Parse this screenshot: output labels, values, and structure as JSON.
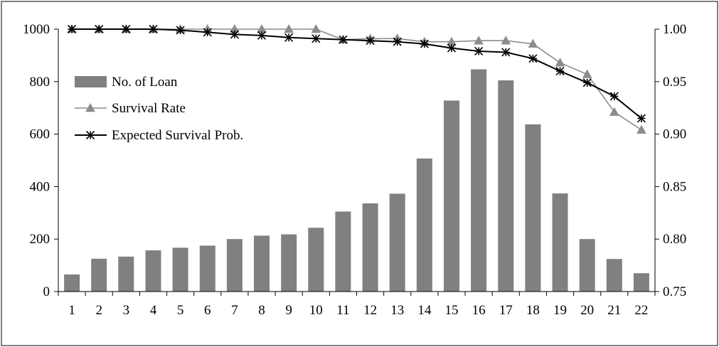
{
  "chart_data": {
    "type": "bar",
    "title": "",
    "xlabel": "",
    "categories": [
      "1",
      "2",
      "3",
      "4",
      "5",
      "6",
      "7",
      "8",
      "9",
      "10",
      "11",
      "12",
      "13",
      "14",
      "15",
      "16",
      "17",
      "18",
      "19",
      "20",
      "21",
      "22"
    ],
    "bars": {
      "name": "No. of Loan",
      "axis": "left",
      "color": "#808080",
      "values": [
        65,
        125,
        133,
        157,
        167,
        175,
        200,
        213,
        218,
        243,
        305,
        336,
        373,
        507,
        728,
        847,
        805,
        637,
        374,
        200,
        124,
        70
      ]
    },
    "lines": [
      {
        "name": "Survival Rate",
        "axis": "right",
        "color": "#8c8c8c",
        "marker": "triangle",
        "values": [
          1.0,
          1.0,
          1.0,
          1.0,
          1.0,
          1.0,
          1.0,
          1.0,
          1.0,
          1.0,
          0.99,
          0.991,
          0.991,
          0.988,
          0.988,
          0.989,
          0.989,
          0.986,
          0.968,
          0.957,
          0.921,
          0.904
        ]
      },
      {
        "name": "Expected Survival Prob.",
        "axis": "right",
        "color": "#000000",
        "marker": "star",
        "values": [
          1.0,
          1.0,
          1.0,
          1.0,
          0.999,
          0.997,
          0.995,
          0.994,
          0.992,
          0.991,
          0.99,
          0.989,
          0.988,
          0.986,
          0.982,
          0.979,
          0.978,
          0.972,
          0.96,
          0.949,
          0.936,
          0.915
        ]
      }
    ],
    "y_left": {
      "min": 0,
      "max": 1000,
      "ticks": [
        "0",
        "200",
        "400",
        "600",
        "800",
        "1000"
      ]
    },
    "y_right": {
      "min": 0.75,
      "max": 1.0,
      "ticks": [
        "0.75",
        "0.80",
        "0.85",
        "0.90",
        "0.95",
        "1.00"
      ]
    },
    "legend": {
      "placement": "top-left"
    },
    "grid": false
  }
}
